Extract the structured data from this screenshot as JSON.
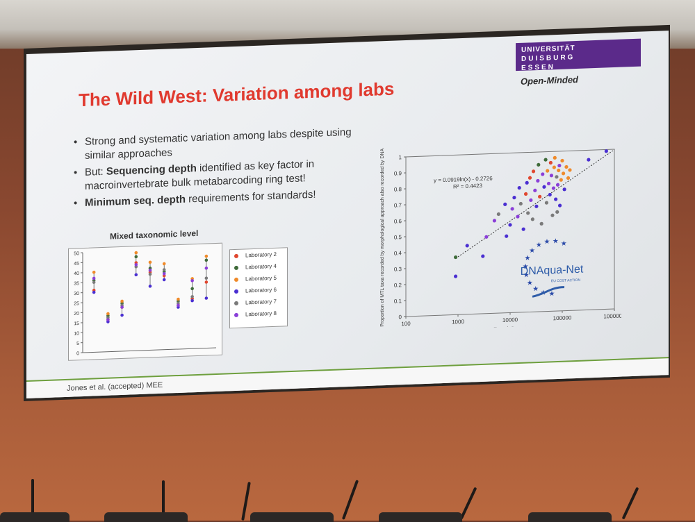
{
  "slide": {
    "title": "The Wild West: Variation among labs",
    "logo": {
      "line1": "UNIVERSITÄT",
      "line2": "DUISBURG",
      "line3": "ESSEN",
      "tagline": "Open-Minded"
    },
    "bullets": [
      {
        "parts": [
          {
            "text": "Strong and systematic variation among labs despite using similar approaches",
            "bold": false
          }
        ]
      },
      {
        "parts": [
          {
            "text": "But: ",
            "bold": false
          },
          {
            "text": "Sequencing depth",
            "bold": true
          },
          {
            "text": " identified as key factor in macroinvertebrate bulk metabarcoding ring test!",
            "bold": false
          }
        ]
      },
      {
        "parts": [
          {
            "text": "Minimum seq. depth",
            "bold": true
          },
          {
            "text": " requirements for standards!",
            "bold": false
          }
        ]
      }
    ],
    "footer": "Jones et al. (accepted) MEE",
    "dnaqua": {
      "name": "DNAqua-Net",
      "sub": "EU COST ACTION"
    }
  },
  "chart_data": [
    {
      "type": "scatter",
      "title": "Mixed taxonomic level",
      "ylim": [
        0,
        50
      ],
      "yticks": [
        0,
        5,
        10,
        15,
        20,
        25,
        30,
        35,
        40,
        45,
        50
      ],
      "legend": [
        "Laboratory 2",
        "Laboratory 4",
        "Laboratory 5",
        "Laboratory 6",
        "Laboratory 7",
        "Laboratory 8"
      ],
      "colors": [
        "#e0472f",
        "#3f6b3a",
        "#ef8a2a",
        "#4a2fd1",
        "#7a7a7a",
        "#8a3fd8"
      ],
      "groups": [
        {
          "values": [
            31,
            36,
            40,
            30,
            35,
            37
          ]
        },
        {
          "values": [
            16,
            18,
            19,
            15,
            17,
            16
          ]
        },
        {
          "values": [
            22,
            24,
            25,
            18,
            23,
            22
          ]
        },
        {
          "values": [
            44,
            47,
            49,
            38,
            42,
            43
          ]
        },
        {
          "values": [
            39,
            41,
            44,
            32,
            38,
            40
          ]
        },
        {
          "values": [
            37,
            39,
            43,
            35,
            40,
            38
          ]
        },
        {
          "values": [
            22,
            24,
            25,
            21,
            23,
            22
          ]
        },
        {
          "values": [
            25,
            30,
            35,
            24,
            26,
            34
          ]
        },
        {
          "values": [
            33,
            44,
            46,
            25,
            35,
            40
          ]
        }
      ]
    },
    {
      "type": "scatter",
      "xlabel": "Read Count",
      "ylabel": "Proportion of MTL taxa recorded by morphological approach also recorded by DNA",
      "xscale": "log",
      "xticks": [
        "100",
        "1000",
        "10000",
        "100000",
        "1000000"
      ],
      "yticks": [
        "0",
        "0.1",
        "0.2",
        "0.3",
        "0.4",
        "0.5",
        "0.6",
        "0.7",
        "0.8",
        "0.9",
        "1"
      ],
      "equation": "y = 0.0919ln(x) - 0.2726",
      "r2": "R² = 0.4423",
      "trend": {
        "slope": 0.0919,
        "intercept": -0.2726
      },
      "points": [
        {
          "x": 900,
          "y": 0.36,
          "c": 1
        },
        {
          "x": 900,
          "y": 0.24,
          "c": 3
        },
        {
          "x": 1500,
          "y": 0.43,
          "c": 3
        },
        {
          "x": 3000,
          "y": 0.36,
          "c": 3
        },
        {
          "x": 3500,
          "y": 0.48,
          "c": 5
        },
        {
          "x": 5000,
          "y": 0.58,
          "c": 5
        },
        {
          "x": 6000,
          "y": 0.62,
          "c": 4
        },
        {
          "x": 8000,
          "y": 0.68,
          "c": 3
        },
        {
          "x": 8500,
          "y": 0.48,
          "c": 3
        },
        {
          "x": 10000,
          "y": 0.55,
          "c": 3
        },
        {
          "x": 11000,
          "y": 0.65,
          "c": 5
        },
        {
          "x": 12000,
          "y": 0.72,
          "c": 3
        },
        {
          "x": 14000,
          "y": 0.6,
          "c": 5
        },
        {
          "x": 15000,
          "y": 0.78,
          "c": 3
        },
        {
          "x": 16000,
          "y": 0.68,
          "c": 4
        },
        {
          "x": 18000,
          "y": 0.52,
          "c": 3
        },
        {
          "x": 20000,
          "y": 0.74,
          "c": 0
        },
        {
          "x": 21000,
          "y": 0.81,
          "c": 3
        },
        {
          "x": 22000,
          "y": 0.62,
          "c": 4
        },
        {
          "x": 24000,
          "y": 0.84,
          "c": 0
        },
        {
          "x": 25000,
          "y": 0.7,
          "c": 5
        },
        {
          "x": 27000,
          "y": 0.58,
          "c": 4
        },
        {
          "x": 28000,
          "y": 0.88,
          "c": 0
        },
        {
          "x": 30000,
          "y": 0.76,
          "c": 5
        },
        {
          "x": 32000,
          "y": 0.66,
          "c": 3
        },
        {
          "x": 34000,
          "y": 0.82,
          "c": 5
        },
        {
          "x": 35000,
          "y": 0.92,
          "c": 1
        },
        {
          "x": 37000,
          "y": 0.72,
          "c": 0
        },
        {
          "x": 40000,
          "y": 0.55,
          "c": 4
        },
        {
          "x": 42000,
          "y": 0.86,
          "c": 5
        },
        {
          "x": 45000,
          "y": 0.78,
          "c": 3
        },
        {
          "x": 48000,
          "y": 0.95,
          "c": 1
        },
        {
          "x": 50000,
          "y": 0.68,
          "c": 4
        },
        {
          "x": 52000,
          "y": 0.88,
          "c": 2
        },
        {
          "x": 55000,
          "y": 0.8,
          "c": 5
        },
        {
          "x": 58000,
          "y": 0.73,
          "c": 3
        },
        {
          "x": 60000,
          "y": 0.93,
          "c": 0
        },
        {
          "x": 62000,
          "y": 0.85,
          "c": 5
        },
        {
          "x": 65000,
          "y": 0.6,
          "c": 4
        },
        {
          "x": 68000,
          "y": 0.77,
          "c": 5
        },
        {
          "x": 70000,
          "y": 0.9,
          "c": 2
        },
        {
          "x": 72000,
          "y": 0.96,
          "c": 2
        },
        {
          "x": 75000,
          "y": 0.7,
          "c": 3
        },
        {
          "x": 78000,
          "y": 0.84,
          "c": 4
        },
        {
          "x": 80000,
          "y": 0.62,
          "c": 4
        },
        {
          "x": 82000,
          "y": 0.79,
          "c": 5
        },
        {
          "x": 85000,
          "y": 0.88,
          "c": 2
        },
        {
          "x": 88000,
          "y": 0.91,
          "c": 5
        },
        {
          "x": 90000,
          "y": 0.66,
          "c": 3
        },
        {
          "x": 95000,
          "y": 0.82,
          "c": 2
        },
        {
          "x": 100000,
          "y": 0.94,
          "c": 2
        },
        {
          "x": 105000,
          "y": 0.86,
          "c": 2
        },
        {
          "x": 110000,
          "y": 0.76,
          "c": 3
        },
        {
          "x": 120000,
          "y": 0.9,
          "c": 2
        },
        {
          "x": 130000,
          "y": 0.83,
          "c": 2
        },
        {
          "x": 140000,
          "y": 0.88,
          "c": 2
        },
        {
          "x": 320000,
          "y": 0.94,
          "c": 3
        },
        {
          "x": 700000,
          "y": 0.99,
          "c": 3
        }
      ]
    }
  ]
}
